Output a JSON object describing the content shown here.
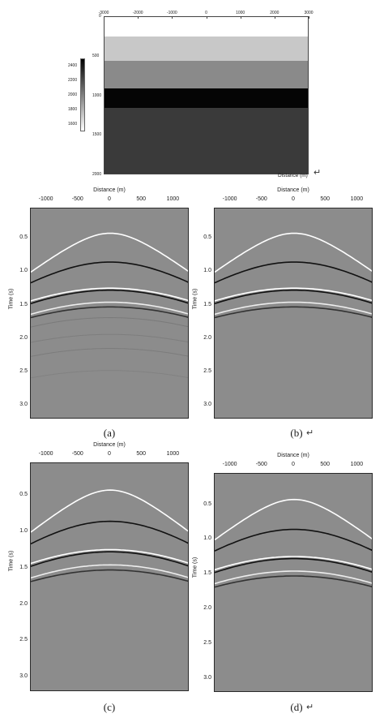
{
  "model": {
    "x_ticks": [
      "-3000",
      "-2000",
      "-1000",
      "0",
      "1000",
      "2000",
      "3000"
    ],
    "y_ticks": [
      "0",
      "500",
      "1000",
      "1500",
      "2000"
    ],
    "x_label": "Distance (m)",
    "colorbar_ticks": [
      "2400",
      "2200",
      "2000",
      "1800",
      "1600"
    ],
    "layers": [
      {
        "depth_top": 0,
        "depth_bottom": 250,
        "color": "#ffffff"
      },
      {
        "depth_top": 250,
        "depth_bottom": 550,
        "color": "#c8c8c8"
      },
      {
        "depth_top": 550,
        "depth_bottom": 900,
        "color": "#8a8a8a"
      },
      {
        "depth_top": 900,
        "depth_bottom": 1150,
        "color": "#050505"
      },
      {
        "depth_top": 1150,
        "depth_bottom": 2000,
        "color": "#3a3a3a"
      }
    ],
    "xlim": [
      -3000,
      3000
    ],
    "ylim": [
      0,
      2000
    ],
    "colorbar_range": [
      1500,
      2500
    ]
  },
  "panels_common": {
    "x_label": "Distance (m)",
    "y_label": "Time (s)",
    "x_ticks": [
      "-1000",
      "-500",
      "0",
      "500",
      "1000"
    ],
    "y_ticks": [
      "0.5",
      "1.0",
      "1.5",
      "2.0",
      "2.5",
      "3.0"
    ],
    "xlim": [
      -1250,
      1250
    ],
    "ylim": [
      0.05,
      3.2
    ]
  },
  "chart_data": [
    {
      "type": "line",
      "title": "",
      "caption": "(a)",
      "xlabel": "Distance (m)",
      "ylabel": "Time (s)",
      "xlim": [
        -1250,
        1250
      ],
      "ylim": [
        0.05,
        3.2
      ],
      "series": [
        {
          "t0": 0.42,
          "t_edge": 1.0,
          "color": "#ffffff"
        },
        {
          "t0": 0.85,
          "t_edge": 1.16,
          "color": "#111111"
        },
        {
          "t0": 1.24,
          "t_edge": 1.43,
          "color": "#ffffff"
        },
        {
          "t0": 1.27,
          "t_edge": 1.47,
          "color": "#111111"
        },
        {
          "t0": 1.45,
          "t_edge": 1.63,
          "color": "#eeeeee"
        },
        {
          "t0": 1.52,
          "t_edge": 1.68,
          "color": "#333333"
        },
        {
          "t0": 1.68,
          "t_edge": 1.82,
          "color": "#7a7a7a"
        },
        {
          "t0": 1.93,
          "t_edge": 2.05,
          "color": "#7e7e7e"
        },
        {
          "t0": 2.14,
          "t_edge": 2.26,
          "color": "#7c7c7c"
        },
        {
          "t0": 2.47,
          "t_edge": 2.58,
          "color": "#828282"
        }
      ]
    },
    {
      "type": "line",
      "title": "",
      "caption": "(b)",
      "xlabel": "Distance (m)",
      "ylabel": "Time (s)",
      "xlim": [
        -1250,
        1250
      ],
      "ylim": [
        0.05,
        3.2
      ],
      "series": [
        {
          "t0": 0.42,
          "t_edge": 1.0,
          "color": "#ffffff"
        },
        {
          "t0": 0.85,
          "t_edge": 1.16,
          "color": "#111111"
        },
        {
          "t0": 1.24,
          "t_edge": 1.43,
          "color": "#ffffff"
        },
        {
          "t0": 1.27,
          "t_edge": 1.47,
          "color": "#111111"
        },
        {
          "t0": 1.45,
          "t_edge": 1.63,
          "color": "#eeeeee"
        },
        {
          "t0": 1.52,
          "t_edge": 1.68,
          "color": "#333333"
        }
      ]
    },
    {
      "type": "line",
      "title": "",
      "caption": "(c)",
      "xlabel": "Distance (m)",
      "ylabel": "Time (s)",
      "xlim": [
        -1250,
        1250
      ],
      "ylim": [
        0.05,
        3.2
      ],
      "series": [
        {
          "t0": 0.42,
          "t_edge": 1.0,
          "color": "#ffffff"
        },
        {
          "t0": 0.85,
          "t_edge": 1.16,
          "color": "#111111"
        },
        {
          "t0": 1.24,
          "t_edge": 1.43,
          "color": "#ffffff"
        },
        {
          "t0": 1.27,
          "t_edge": 1.47,
          "color": "#111111"
        },
        {
          "t0": 1.45,
          "t_edge": 1.63,
          "color": "#eeeeee"
        },
        {
          "t0": 1.52,
          "t_edge": 1.68,
          "color": "#333333"
        }
      ]
    },
    {
      "type": "line",
      "title": "",
      "caption": "(d)",
      "xlabel": "Distance (m)",
      "ylabel": "Time (s)",
      "xlim": [
        -1250,
        1250
      ],
      "ylim": [
        0.05,
        3.2
      ],
      "series": [
        {
          "t0": 0.42,
          "t_edge": 1.0,
          "color": "#ffffff"
        },
        {
          "t0": 0.85,
          "t_edge": 1.16,
          "color": "#111111"
        },
        {
          "t0": 1.24,
          "t_edge": 1.43,
          "color": "#ffffff"
        },
        {
          "t0": 1.27,
          "t_edge": 1.47,
          "color": "#111111"
        },
        {
          "t0": 1.45,
          "t_edge": 1.63,
          "color": "#eeeeee"
        },
        {
          "t0": 1.52,
          "t_edge": 1.68,
          "color": "#333333"
        }
      ]
    }
  ],
  "return_symbol": "↵"
}
